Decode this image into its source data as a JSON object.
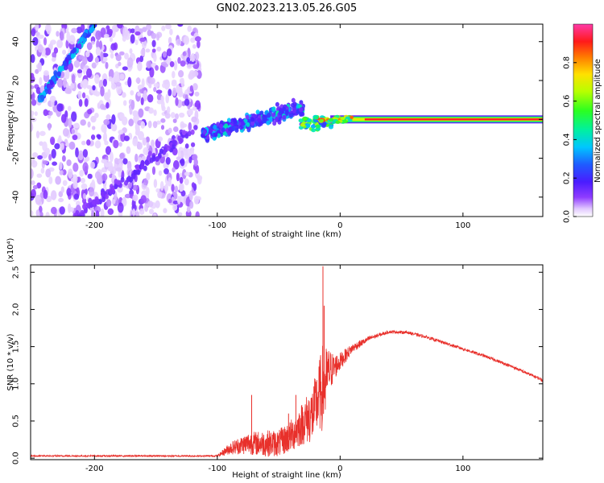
{
  "figure": {
    "title": "GN02.2023.213.05.26.G05"
  },
  "chart_data": [
    {
      "type": "heatmap",
      "xlabel": "Height of straight line (km)",
      "ylabel": "Frequency (Hz)",
      "xlim": [
        -252,
        165
      ],
      "ylim": [
        -50,
        49
      ],
      "xticks": [
        -200,
        -100,
        0,
        100
      ],
      "yticks": [
        -40,
        -20,
        0,
        20,
        40
      ],
      "colorbar": {
        "label": "Normalized spectral amplitude",
        "ticks": [
          0.0,
          0.2,
          0.4,
          0.6,
          0.8
        ],
        "range": [
          0,
          1
        ],
        "colormap": "white-violet-blue-cyan-green-yellow-orange-red-pink"
      },
      "features": [
        {
          "name": "rising branch",
          "x": [
            -245,
            -200
          ],
          "y": [
            10,
            49
          ],
          "amplitude": 0.3
        },
        {
          "name": "falling branch",
          "x": [
            -215,
            -120
          ],
          "y": [
            -50,
            -5
          ],
          "amplitude": 0.05
        },
        {
          "name": "transition track",
          "x": [
            -112,
            -30
          ],
          "y": [
            -15,
            10
          ],
          "amplitude": 0.3
        },
        {
          "name": "steady tone",
          "x": [
            -10,
            165
          ],
          "y": [
            0,
            0
          ],
          "amplitude": 0.95
        }
      ]
    },
    {
      "type": "line",
      "xlabel": "Height of straight line (km)",
      "ylabel": "SNR (10 * v/v)",
      "y_multiplier": "(x10⁴)",
      "xlim": [
        -252,
        165
      ],
      "ylim": [
        -0.02,
        2.6
      ],
      "xticks": [
        -200,
        -100,
        0,
        100
      ],
      "yticks": [
        0.0,
        0.5,
        1.0,
        1.5,
        2.0,
        2.5
      ],
      "color": "#e8302b",
      "envelope": {
        "x": [
          -252,
          -100,
          -90,
          -75,
          -60,
          -50,
          -40,
          -30,
          -22,
          -18,
          -14,
          -12,
          -10,
          -5,
          0,
          10,
          25,
          40,
          55,
          70,
          85,
          100,
          120,
          140,
          165
        ],
        "y": [
          0.03,
          0.03,
          0.13,
          0.2,
          0.2,
          0.2,
          0.3,
          0.48,
          0.6,
          0.8,
          0.95,
          1.0,
          1.15,
          1.22,
          1.3,
          1.48,
          1.62,
          1.7,
          1.69,
          1.63,
          1.55,
          1.47,
          1.36,
          1.23,
          1.05
        ],
        "amp": [
          0.01,
          0.01,
          0.08,
          0.15,
          0.18,
          0.18,
          0.22,
          0.3,
          0.4,
          0.45,
          0.6,
          0.5,
          0.35,
          0.18,
          0.12,
          0.06,
          0.03,
          0.02,
          0.02,
          0.02,
          0.02,
          0.02,
          0.02,
          0.02,
          0.02
        ]
      },
      "spikes": [
        {
          "x": -14,
          "y": 2.58
        },
        {
          "x": -13,
          "y": 2.05
        },
        {
          "x": -36,
          "y": 0.85
        },
        {
          "x": -72,
          "y": 0.85
        },
        {
          "x": -42,
          "y": 0.6
        }
      ]
    }
  ]
}
